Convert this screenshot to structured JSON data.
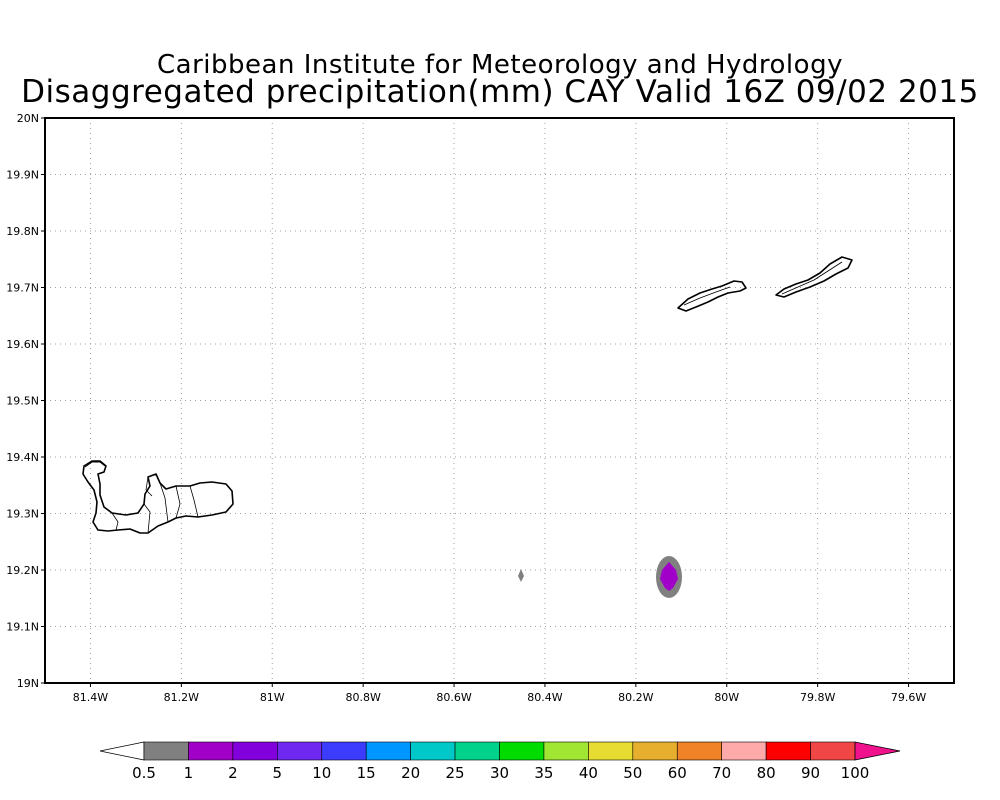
{
  "title": {
    "line1": "Caribbean Institute for Meteorology and Hydrology",
    "line2": "Disaggregated precipitation(mm) CAY Valid 16Z 09/02 2015"
  },
  "map": {
    "lat_range": [
      19.0,
      20.0
    ],
    "lon_range": [
      -81.5,
      -79.5
    ],
    "lat_ticks": [
      {
        "value": 20.0,
        "label": "20N"
      },
      {
        "value": 19.9,
        "label": "19.9N"
      },
      {
        "value": 19.8,
        "label": "19.8N"
      },
      {
        "value": 19.7,
        "label": "19.7N"
      },
      {
        "value": 19.6,
        "label": "19.6N"
      },
      {
        "value": 19.5,
        "label": "19.5N"
      },
      {
        "value": 19.4,
        "label": "19.4N"
      },
      {
        "value": 19.3,
        "label": "19.3N"
      },
      {
        "value": 19.2,
        "label": "19.2N"
      },
      {
        "value": 19.1,
        "label": "19.1N"
      },
      {
        "value": 19.0,
        "label": "19N"
      }
    ],
    "lon_ticks": [
      {
        "value": -81.4,
        "label": "81.4W"
      },
      {
        "value": -81.2,
        "label": "81.2W"
      },
      {
        "value": -81.0,
        "label": "81W"
      },
      {
        "value": -80.8,
        "label": "80.8W"
      },
      {
        "value": -80.6,
        "label": "80.6W"
      },
      {
        "value": -80.4,
        "label": "80.4W"
      },
      {
        "value": -80.2,
        "label": "80.2W"
      },
      {
        "value": -80.0,
        "label": "80W"
      },
      {
        "value": -79.8,
        "label": "79.8W"
      },
      {
        "value": -79.6,
        "label": "79.6W"
      }
    ],
    "grid": true,
    "grid_style": "dotted",
    "precip_features": [
      {
        "lon": -80.127,
        "lat": 19.189,
        "outer_mm": 0.5,
        "inner_mm": 1
      },
      {
        "lon": -80.455,
        "lat": 19.19,
        "outer_mm": 0.5
      }
    ]
  },
  "colorbar": {
    "labels": [
      "0.5",
      "1",
      "2",
      "5",
      "10",
      "15",
      "20",
      "25",
      "30",
      "35",
      "40",
      "50",
      "60",
      "70",
      "80",
      "90",
      "100"
    ],
    "colors": [
      "#ffffff",
      "#808080",
      "#a000c8",
      "#8200dc",
      "#6e28f0",
      "#3c3cff",
      "#0096ff",
      "#00c8c8",
      "#00d28c",
      "#00dc00",
      "#a0e632",
      "#e6dc32",
      "#e6af2d",
      "#f08228",
      "#ffaaaa",
      "#ff0000",
      "#f04646",
      "#f0128c"
    ]
  }
}
